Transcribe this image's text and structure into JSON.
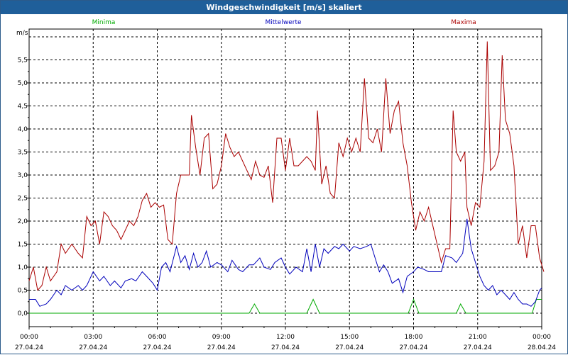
{
  "window": {
    "title": "Windgeschwindigkeit [m/s] skaliert"
  },
  "chart_data": {
    "type": "line",
    "title": "Windgeschwindigkeit [m/s] skaliert",
    "ylabel": "m/s",
    "xlabel": "",
    "ylim": [
      -0.3,
      6.0
    ],
    "xlim_hours": [
      0,
      24
    ],
    "yticks": [
      "0,0",
      "0,5",
      "1,0",
      "1,5",
      "2,0",
      "2,5",
      "3,0",
      "3,5",
      "4,0",
      "4,5",
      "5,0",
      "5,5"
    ],
    "yticks_values": [
      0,
      0.5,
      1,
      1.5,
      2,
      2.5,
      3,
      3.5,
      4,
      4.5,
      5,
      5.5
    ],
    "xticks": [
      {
        "time": "00:00",
        "date": "27.04.24",
        "hour": 0
      },
      {
        "time": "03:00",
        "date": "27.04.24",
        "hour": 3
      },
      {
        "time": "06:00",
        "date": "27.04.24",
        "hour": 6
      },
      {
        "time": "09:00",
        "date": "27.04.24",
        "hour": 9
      },
      {
        "time": "12:00",
        "date": "27.04.24",
        "hour": 12
      },
      {
        "time": "15:00",
        "date": "27.04.24",
        "hour": 15
      },
      {
        "time": "18:00",
        "date": "27.04.24",
        "hour": 18
      },
      {
        "time": "21:00",
        "date": "27.04.24",
        "hour": 21
      },
      {
        "time": "00:00",
        "date": "28.04.24",
        "hour": 24
      }
    ],
    "grid": true,
    "legend_placement": "top",
    "series": [
      {
        "name": "Minima",
        "color": "#00aa00",
        "points": [
          [
            0,
            0
          ],
          [
            10.3,
            0
          ],
          [
            10.55,
            0.2
          ],
          [
            10.8,
            0
          ],
          [
            13.0,
            0
          ],
          [
            13.3,
            0.3
          ],
          [
            13.6,
            0
          ],
          [
            17.75,
            0
          ],
          [
            18.0,
            0.3
          ],
          [
            18.25,
            0
          ],
          [
            20.0,
            0
          ],
          [
            20.2,
            0.2
          ],
          [
            20.45,
            0
          ],
          [
            23.55,
            0
          ],
          [
            23.75,
            0.3
          ],
          [
            24,
            0.3
          ]
        ]
      },
      {
        "name": "Mittelwerte",
        "color": "#0000bb",
        "points": [
          [
            0,
            0.3
          ],
          [
            0.3,
            0.3
          ],
          [
            0.5,
            0.15
          ],
          [
            0.8,
            0.2
          ],
          [
            1.0,
            0.3
          ],
          [
            1.3,
            0.5
          ],
          [
            1.5,
            0.4
          ],
          [
            1.7,
            0.6
          ],
          [
            2.0,
            0.5
          ],
          [
            2.3,
            0.6
          ],
          [
            2.5,
            0.5
          ],
          [
            2.7,
            0.6
          ],
          [
            3.0,
            0.9
          ],
          [
            3.3,
            0.7
          ],
          [
            3.5,
            0.8
          ],
          [
            3.8,
            0.6
          ],
          [
            4.0,
            0.7
          ],
          [
            4.3,
            0.55
          ],
          [
            4.5,
            0.7
          ],
          [
            4.8,
            0.75
          ],
          [
            5.0,
            0.7
          ],
          [
            5.3,
            0.9
          ],
          [
            5.5,
            0.8
          ],
          [
            5.8,
            0.65
          ],
          [
            6.0,
            0.5
          ],
          [
            6.2,
            1.0
          ],
          [
            6.4,
            1.1
          ],
          [
            6.6,
            0.9
          ],
          [
            6.9,
            1.45
          ],
          [
            7.1,
            1.1
          ],
          [
            7.3,
            1.25
          ],
          [
            7.5,
            0.95
          ],
          [
            7.7,
            1.3
          ],
          [
            7.9,
            1.0
          ],
          [
            8.1,
            1.1
          ],
          [
            8.3,
            1.35
          ],
          [
            8.5,
            1.0
          ],
          [
            8.8,
            1.1
          ],
          [
            9.0,
            1.05
          ],
          [
            9.3,
            0.9
          ],
          [
            9.5,
            1.15
          ],
          [
            9.8,
            0.95
          ],
          [
            10.0,
            0.9
          ],
          [
            10.3,
            1.05
          ],
          [
            10.5,
            1.05
          ],
          [
            10.8,
            1.2
          ],
          [
            11.0,
            1.0
          ],
          [
            11.3,
            0.95
          ],
          [
            11.5,
            1.1
          ],
          [
            11.8,
            1.2
          ],
          [
            12.0,
            1.0
          ],
          [
            12.2,
            0.85
          ],
          [
            12.5,
            1.0
          ],
          [
            12.8,
            0.9
          ],
          [
            13.0,
            1.4
          ],
          [
            13.2,
            0.9
          ],
          [
            13.4,
            1.5
          ],
          [
            13.6,
            1.0
          ],
          [
            13.8,
            1.4
          ],
          [
            14.0,
            1.3
          ],
          [
            14.3,
            1.45
          ],
          [
            14.5,
            1.4
          ],
          [
            14.7,
            1.5
          ],
          [
            15.0,
            1.35
          ],
          [
            15.2,
            1.45
          ],
          [
            15.5,
            1.4
          ],
          [
            15.8,
            1.45
          ],
          [
            16.0,
            1.5
          ],
          [
            16.2,
            1.2
          ],
          [
            16.4,
            0.9
          ],
          [
            16.6,
            1.05
          ],
          [
            16.8,
            0.9
          ],
          [
            17.0,
            0.65
          ],
          [
            17.3,
            0.75
          ],
          [
            17.5,
            0.45
          ],
          [
            17.7,
            0.8
          ],
          [
            18.0,
            0.9
          ],
          [
            18.2,
            1.0
          ],
          [
            18.5,
            0.95
          ],
          [
            18.7,
            0.9
          ],
          [
            19.0,
            0.9
          ],
          [
            19.3,
            0.9
          ],
          [
            19.5,
            1.25
          ],
          [
            19.8,
            1.2
          ],
          [
            20.0,
            1.1
          ],
          [
            20.3,
            1.3
          ],
          [
            20.5,
            2.05
          ],
          [
            20.7,
            1.4
          ],
          [
            20.9,
            1.1
          ],
          [
            21.1,
            0.8
          ],
          [
            21.3,
            0.6
          ],
          [
            21.5,
            0.5
          ],
          [
            21.7,
            0.6
          ],
          [
            21.9,
            0.4
          ],
          [
            22.1,
            0.5
          ],
          [
            22.3,
            0.4
          ],
          [
            22.5,
            0.3
          ],
          [
            22.7,
            0.45
          ],
          [
            22.9,
            0.3
          ],
          [
            23.1,
            0.2
          ],
          [
            23.3,
            0.2
          ],
          [
            23.5,
            0.15
          ],
          [
            23.7,
            0.25
          ],
          [
            23.9,
            0.5
          ],
          [
            24,
            0.55
          ]
        ]
      },
      {
        "name": "Maxima",
        "color": "#aa0000",
        "points": [
          [
            0,
            0.7
          ],
          [
            0.2,
            1.0
          ],
          [
            0.4,
            0.5
          ],
          [
            0.6,
            0.6
          ],
          [
            0.8,
            1.0
          ],
          [
            1.0,
            0.7
          ],
          [
            1.3,
            0.9
          ],
          [
            1.5,
            1.5
          ],
          [
            1.7,
            1.3
          ],
          [
            2.0,
            1.5
          ],
          [
            2.3,
            1.3
          ],
          [
            2.5,
            1.2
          ],
          [
            2.7,
            2.1
          ],
          [
            2.9,
            1.9
          ],
          [
            3.1,
            2.0
          ],
          [
            3.3,
            1.5
          ],
          [
            3.5,
            2.2
          ],
          [
            3.7,
            2.1
          ],
          [
            3.9,
            1.9
          ],
          [
            4.1,
            1.8
          ],
          [
            4.3,
            1.6
          ],
          [
            4.5,
            1.8
          ],
          [
            4.7,
            2.0
          ],
          [
            4.9,
            1.9
          ],
          [
            5.1,
            2.1
          ],
          [
            5.3,
            2.45
          ],
          [
            5.5,
            2.6
          ],
          [
            5.7,
            2.3
          ],
          [
            5.9,
            2.4
          ],
          [
            6.1,
            2.3
          ],
          [
            6.3,
            2.35
          ],
          [
            6.5,
            1.6
          ],
          [
            6.7,
            1.5
          ],
          [
            6.9,
            2.6
          ],
          [
            7.1,
            3.0
          ],
          [
            7.3,
            3.0
          ],
          [
            7.5,
            3.0
          ],
          [
            7.6,
            4.3
          ],
          [
            7.8,
            3.6
          ],
          [
            8.0,
            3.0
          ],
          [
            8.2,
            3.8
          ],
          [
            8.4,
            3.9
          ],
          [
            8.6,
            2.7
          ],
          [
            8.8,
            2.8
          ],
          [
            9.0,
            3.2
          ],
          [
            9.2,
            3.9
          ],
          [
            9.4,
            3.6
          ],
          [
            9.6,
            3.4
          ],
          [
            9.8,
            3.5
          ],
          [
            10.0,
            3.3
          ],
          [
            10.2,
            3.1
          ],
          [
            10.4,
            2.9
          ],
          [
            10.6,
            3.3
          ],
          [
            10.8,
            3.0
          ],
          [
            11.0,
            2.95
          ],
          [
            11.2,
            3.2
          ],
          [
            11.4,
            2.4
          ],
          [
            11.6,
            3.8
          ],
          [
            11.8,
            3.8
          ],
          [
            12.0,
            3.1
          ],
          [
            12.2,
            3.8
          ],
          [
            12.4,
            3.2
          ],
          [
            12.6,
            3.2
          ],
          [
            12.8,
            3.3
          ],
          [
            13.0,
            3.4
          ],
          [
            13.2,
            3.3
          ],
          [
            13.4,
            3.1
          ],
          [
            13.5,
            4.4
          ],
          [
            13.7,
            2.8
          ],
          [
            13.9,
            3.2
          ],
          [
            14.1,
            2.6
          ],
          [
            14.3,
            2.5
          ],
          [
            14.5,
            3.7
          ],
          [
            14.7,
            3.4
          ],
          [
            14.9,
            3.8
          ],
          [
            15.1,
            3.5
          ],
          [
            15.3,
            3.8
          ],
          [
            15.5,
            3.5
          ],
          [
            15.7,
            5.1
          ],
          [
            15.9,
            3.8
          ],
          [
            16.1,
            3.7
          ],
          [
            16.3,
            4.0
          ],
          [
            16.5,
            3.5
          ],
          [
            16.7,
            5.1
          ],
          [
            16.9,
            3.9
          ],
          [
            17.1,
            4.4
          ],
          [
            17.3,
            4.6
          ],
          [
            17.5,
            3.7
          ],
          [
            17.7,
            3.2
          ],
          [
            17.9,
            2.4
          ],
          [
            18.1,
            1.8
          ],
          [
            18.3,
            2.2
          ],
          [
            18.5,
            2.0
          ],
          [
            18.7,
            2.3
          ],
          [
            18.9,
            1.9
          ],
          [
            19.1,
            1.5
          ],
          [
            19.3,
            1.1
          ],
          [
            19.5,
            1.4
          ],
          [
            19.7,
            1.4
          ],
          [
            19.85,
            4.4
          ],
          [
            20.0,
            3.5
          ],
          [
            20.2,
            3.3
          ],
          [
            20.4,
            3.5
          ],
          [
            20.5,
            2.3
          ],
          [
            20.7,
            1.9
          ],
          [
            20.9,
            2.4
          ],
          [
            21.1,
            2.3
          ],
          [
            21.3,
            3.3
          ],
          [
            21.45,
            5.9
          ],
          [
            21.6,
            3.1
          ],
          [
            21.8,
            3.2
          ],
          [
            22.0,
            3.5
          ],
          [
            22.15,
            5.6
          ],
          [
            22.3,
            4.2
          ],
          [
            22.5,
            3.9
          ],
          [
            22.7,
            3.2
          ],
          [
            22.9,
            1.5
          ],
          [
            23.1,
            1.9
          ],
          [
            23.3,
            1.2
          ],
          [
            23.5,
            1.9
          ],
          [
            23.7,
            1.9
          ],
          [
            23.9,
            1.2
          ],
          [
            24.1,
            0.9
          ]
        ]
      }
    ]
  }
}
